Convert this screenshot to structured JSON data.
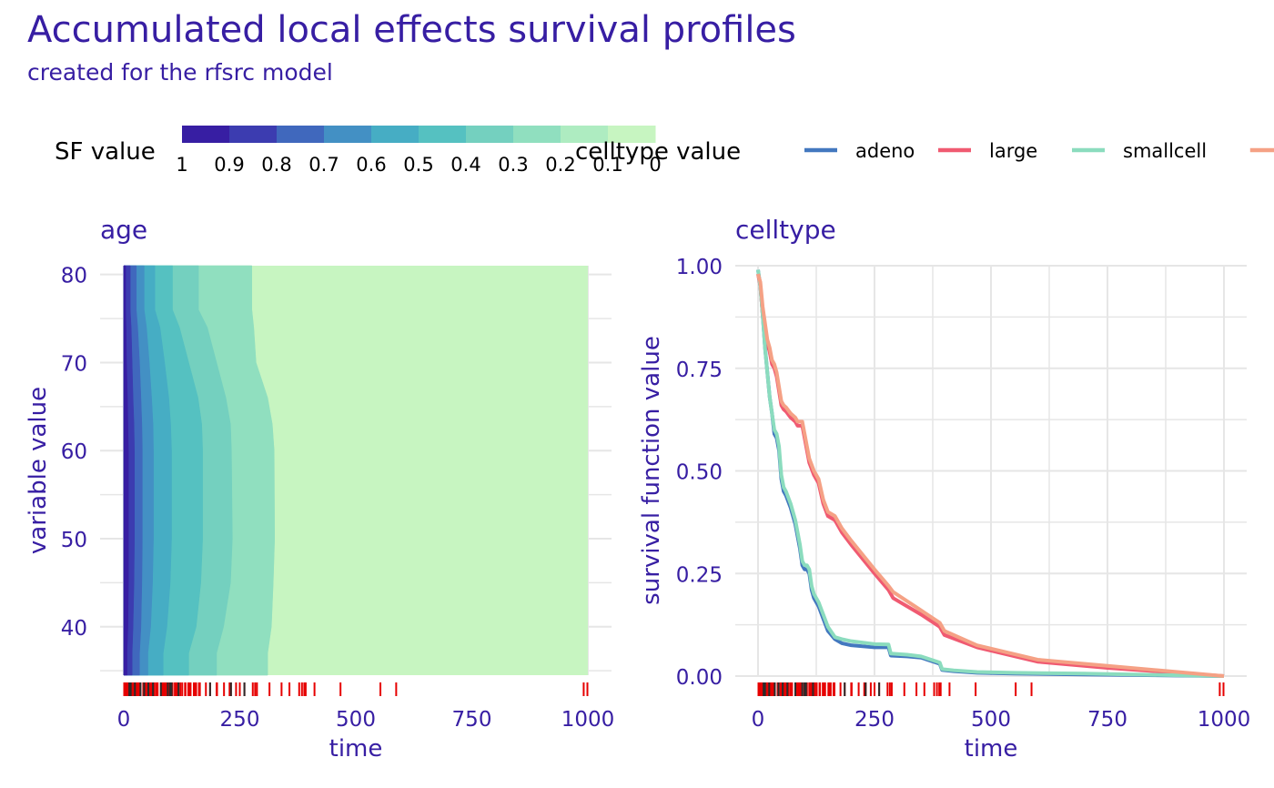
{
  "title": "Accumulated local effects survival profiles",
  "subtitle": "created for the rfsrc model",
  "colors": {
    "accent": "#371ea3",
    "grid": "#e6e6e6",
    "rug_red": "#e60000",
    "rug_dark": "#2b2b2b",
    "sf_ramp": [
      "#371ea3",
      "#3c3cb0",
      "#4068bd",
      "#4390c4",
      "#46adc4",
      "#55c1c1",
      "#74d0bf",
      "#90dfbf",
      "#aeecc1",
      "#c7f5c1"
    ]
  },
  "legend_sf": {
    "title": "SF value",
    "tick_labels": [
      "1",
      "0.9",
      "0.8",
      "0.7",
      "0.6",
      "0.5",
      "0.4",
      "0.3",
      "0.2",
      "0.1",
      "0"
    ]
  },
  "legend_celltype": {
    "title": "celltype value",
    "entries": [
      {
        "label": "adeno",
        "color": "#4378bf"
      },
      {
        "label": "large",
        "color": "#f05a71"
      },
      {
        "label": "smallcell",
        "color": "#8bdcbe"
      },
      {
        "label": "",
        "color": "#f5a185"
      }
    ]
  },
  "chart_data": [
    {
      "type": "heatmap",
      "panel_title": "age",
      "xlabel": "time",
      "ylabel": "variable value",
      "xlim": [
        0,
        1000
      ],
      "ylim": [
        34.5,
        81
      ],
      "x_ticks": [
        "0",
        "250",
        "500",
        "750",
        "1000"
      ],
      "y_ticks": [
        "40",
        "50",
        "60",
        "70",
        "80"
      ],
      "sf_levels": [
        0.9,
        0.8,
        0.7,
        0.6,
        0.5,
        0.4,
        0.3,
        0.2,
        0.1
      ],
      "ages": [
        81,
        76,
        74,
        70,
        66,
        63,
        60,
        50,
        45,
        40,
        37,
        34.5
      ],
      "contour_times_by_age": [
        [
          4,
          14,
          27,
          44,
          67,
          105,
          161,
          276,
          276
        ],
        [
          4,
          14,
          27,
          44,
          67,
          105,
          161,
          276,
          276
        ],
        [
          5,
          16,
          30,
          49,
          78,
          120,
          180,
          280,
          280
        ],
        [
          6,
          18,
          34,
          55,
          88,
          140,
          200,
          285,
          285
        ],
        [
          8,
          20,
          37,
          60,
          97,
          160,
          220,
          310,
          310
        ],
        [
          9,
          22,
          39,
          63,
          101,
          168,
          230,
          320,
          320
        ],
        [
          10,
          23,
          40,
          64,
          103,
          170,
          232,
          324,
          324
        ],
        [
          10,
          23,
          40,
          64,
          103,
          170,
          234,
          325,
          325
        ],
        [
          10,
          22,
          39,
          62,
          100,
          166,
          230,
          322,
          322
        ],
        [
          9,
          20,
          37,
          58,
          93,
          156,
          215,
          318,
          318
        ],
        [
          7,
          18,
          34,
          52,
          85,
          140,
          200,
          310,
          310
        ],
        [
          7,
          18,
          34,
          52,
          85,
          140,
          200,
          310,
          310
        ]
      ],
      "rug_times": [
        1,
        2,
        3,
        4,
        5,
        6,
        7,
        8,
        9,
        10,
        11,
        12,
        13,
        14,
        15,
        16,
        17,
        18,
        19,
        20,
        21,
        22,
        24,
        25,
        27,
        29,
        30,
        31,
        33,
        35,
        36,
        42,
        43,
        44,
        48,
        49,
        51,
        52,
        53,
        54,
        56,
        59,
        61,
        63,
        65,
        69,
        72,
        73,
        80,
        82,
        83,
        84,
        87,
        90,
        92,
        95,
        99,
        100,
        103,
        105,
        110,
        111,
        112,
        114,
        117,
        118,
        122,
        126,
        132,
        133,
        139,
        140,
        143,
        144,
        151,
        153,
        156,
        162,
        164,
        177,
        186,
        200,
        201,
        216,
        228,
        231,
        242,
        250,
        260,
        278,
        283,
        287,
        314,
        340,
        357,
        378,
        384,
        389,
        392,
        411,
        467,
        553,
        587,
        991,
        999
      ],
      "rug_dark_times": [
        12,
        15,
        24,
        36,
        44,
        53,
        63,
        80,
        95,
        100,
        103,
        118,
        186,
        231,
        260
      ]
    },
    {
      "type": "line",
      "panel_title": "celltype",
      "xlabel": "time",
      "ylabel": "survival function value",
      "xlim": [
        0,
        1000
      ],
      "ylim": [
        0,
        1
      ],
      "x_ticks": [
        "0",
        "250",
        "500",
        "750",
        "1000"
      ],
      "y_ticks": [
        "0.00",
        "0.25",
        "0.50",
        "0.75",
        "1.00"
      ],
      "series": [
        {
          "name": "adeno",
          "color": "#4378bf",
          "x": [
            0,
            5,
            10,
            15,
            20,
            25,
            30,
            35,
            40,
            45,
            50,
            55,
            60,
            70,
            80,
            90,
            95,
            100,
            105,
            110,
            115,
            120,
            130,
            140,
            150,
            165,
            180,
            200,
            250,
            280,
            285,
            320,
            350,
            390,
            395,
            420,
            470,
            550,
            700,
            1000
          ],
          "y": [
            0.99,
            0.95,
            0.88,
            0.8,
            0.74,
            0.68,
            0.64,
            0.59,
            0.58,
            0.55,
            0.48,
            0.45,
            0.44,
            0.41,
            0.37,
            0.31,
            0.27,
            0.26,
            0.26,
            0.25,
            0.21,
            0.19,
            0.17,
            0.14,
            0.11,
            0.09,
            0.08,
            0.075,
            0.07,
            0.07,
            0.05,
            0.048,
            0.045,
            0.03,
            0.015,
            0.012,
            0.008,
            0.006,
            0.004,
            0.0
          ]
        },
        {
          "name": "large",
          "color": "#f05a71",
          "x": [
            0,
            5,
            10,
            20,
            25,
            30,
            35,
            40,
            50,
            55,
            60,
            70,
            80,
            85,
            95,
            100,
            105,
            110,
            120,
            130,
            140,
            150,
            165,
            180,
            200,
            250,
            280,
            290,
            350,
            390,
            400,
            470,
            600,
            750,
            1000
          ],
          "y": [
            0.98,
            0.95,
            0.88,
            0.81,
            0.79,
            0.76,
            0.75,
            0.73,
            0.66,
            0.65,
            0.645,
            0.63,
            0.62,
            0.61,
            0.61,
            0.58,
            0.55,
            0.52,
            0.49,
            0.47,
            0.42,
            0.39,
            0.38,
            0.35,
            0.32,
            0.25,
            0.21,
            0.19,
            0.15,
            0.12,
            0.1,
            0.07,
            0.035,
            0.02,
            0.0
          ]
        },
        {
          "name": "smallcell",
          "color": "#8bdcbe",
          "x": [
            0,
            5,
            10,
            15,
            20,
            25,
            30,
            35,
            40,
            45,
            50,
            55,
            60,
            70,
            80,
            90,
            95,
            100,
            105,
            110,
            115,
            120,
            130,
            140,
            150,
            165,
            180,
            200,
            250,
            280,
            285,
            320,
            350,
            390,
            395,
            420,
            470,
            550,
            700,
            1000
          ],
          "y": [
            0.99,
            0.95,
            0.88,
            0.8,
            0.74,
            0.68,
            0.64,
            0.6,
            0.59,
            0.56,
            0.49,
            0.46,
            0.45,
            0.42,
            0.38,
            0.32,
            0.28,
            0.27,
            0.27,
            0.26,
            0.22,
            0.2,
            0.18,
            0.15,
            0.12,
            0.095,
            0.09,
            0.085,
            0.078,
            0.077,
            0.055,
            0.052,
            0.048,
            0.033,
            0.017,
            0.014,
            0.01,
            0.008,
            0.006,
            0.0
          ]
        },
        {
          "name": "",
          "color": "#f5a185",
          "x": [
            0,
            5,
            10,
            20,
            25,
            30,
            35,
            40,
            50,
            55,
            60,
            70,
            80,
            85,
            95,
            100,
            105,
            110,
            120,
            130,
            140,
            150,
            165,
            180,
            200,
            250,
            280,
            290,
            350,
            390,
            400,
            470,
            600,
            750,
            1000
          ],
          "y": [
            0.98,
            0.96,
            0.9,
            0.82,
            0.8,
            0.77,
            0.76,
            0.74,
            0.67,
            0.66,
            0.655,
            0.64,
            0.63,
            0.62,
            0.62,
            0.59,
            0.56,
            0.53,
            0.5,
            0.48,
            0.43,
            0.4,
            0.39,
            0.36,
            0.33,
            0.26,
            0.22,
            0.205,
            0.16,
            0.13,
            0.11,
            0.075,
            0.04,
            0.025,
            0.0
          ]
        }
      ]
    }
  ]
}
